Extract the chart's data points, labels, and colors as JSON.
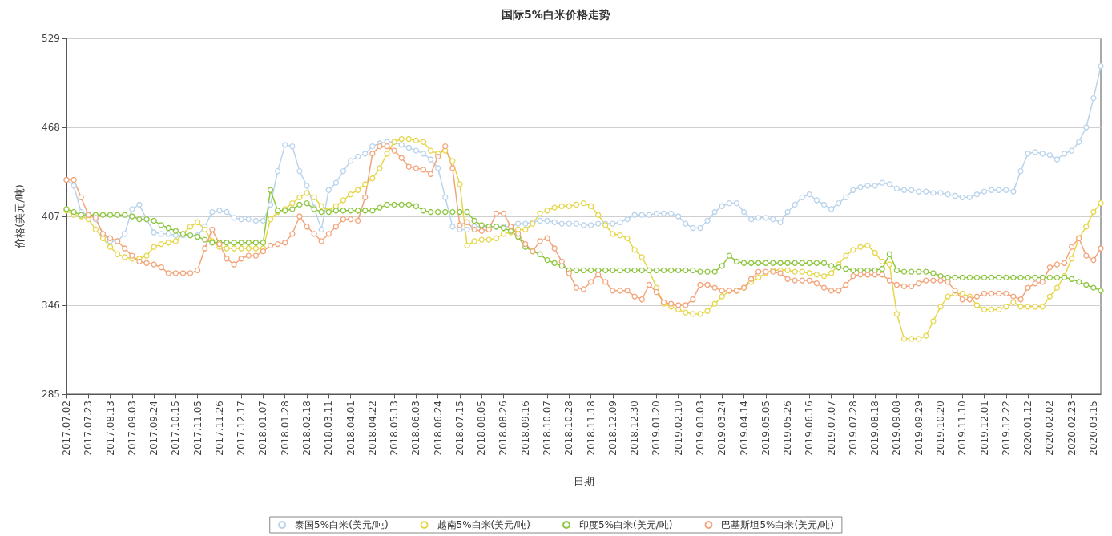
{
  "chart_data": {
    "type": "line",
    "title": "国际5%白米价格走势",
    "xlabel": "日期",
    "ylabel": "价格(美元/吨)",
    "categories": [
      "2017.07.02",
      null,
      null,
      "2017.07.23",
      null,
      null,
      "2017.08.13",
      null,
      null,
      "2017.09.03",
      null,
      null,
      "2017.09.24",
      null,
      null,
      "2017.10.15",
      null,
      null,
      "2017.11.05",
      null,
      null,
      "2017.11.26",
      null,
      null,
      "2017.12.17",
      null,
      null,
      "2018.01.07",
      null,
      null,
      "2018.01.28",
      null,
      null,
      "2018.02.18",
      null,
      null,
      "2018.03.11",
      null,
      null,
      "2018.04.01",
      null,
      null,
      "2018.04.22",
      null,
      null,
      "2018.05.13",
      null,
      null,
      "2018.06.03",
      null,
      null,
      "2018.06.24",
      null,
      null,
      "2018.07.15",
      null,
      null,
      "2018.08.05",
      null,
      null,
      "2018.08.26",
      null,
      null,
      "2018.09.16",
      null,
      null,
      "2018.10.07",
      null,
      null,
      "2018.10.28",
      null,
      null,
      "2018.11.18",
      null,
      null,
      "2018.12.09",
      null,
      null,
      "2018.12.30",
      null,
      null,
      "2019.01.20",
      null,
      null,
      "2019.02.10",
      null,
      null,
      "2019.03.03",
      null,
      null,
      "2019.03.24",
      null,
      null,
      "2019.04.14",
      null,
      null,
      "2019.05.05",
      null,
      null,
      "2019.05.26",
      null,
      null,
      "2019.06.16",
      null,
      null,
      "2019.07.07",
      null,
      null,
      "2019.07.28",
      null,
      null,
      "2019.08.18",
      null,
      null,
      "2019.09.08",
      null,
      null,
      "2019.09.29",
      null,
      null,
      "2019.10.20",
      null,
      null,
      "2019.11.10",
      null,
      null,
      "2019.12.01",
      null,
      null,
      "2019.12.22",
      null,
      null,
      "2020.01.12",
      null,
      null,
      "2020.02.02",
      null,
      null,
      "2020.02.23",
      null,
      null,
      "2020.03.15",
      null
    ],
    "series": [
      {
        "name": "泰国5%白米(美元/吨)",
        "color": "#b9d3ec",
        "values": [
          432,
          428,
          410,
          408,
          405,
          395,
          390,
          390,
          395,
          412,
          415,
          405,
          396,
          395,
          395,
          394,
          394,
          394,
          394,
          400,
          410,
          411,
          410,
          406,
          405,
          405,
          404,
          404,
          415,
          438,
          456,
          455,
          438,
          428,
          413,
          398,
          425,
          430,
          438,
          445,
          448,
          450,
          455,
          457,
          458,
          458,
          456,
          454,
          452,
          450,
          446,
          440,
          420,
          400,
          398,
          398,
          400,
          400,
          400,
          400,
          400,
          400,
          402,
          402,
          403,
          404,
          404,
          403,
          402,
          402,
          402,
          401,
          401,
          402,
          402,
          402,
          403,
          405,
          408,
          408,
          408,
          409,
          409,
          409,
          407,
          402,
          399,
          399,
          404,
          410,
          414,
          416,
          416,
          410,
          405,
          406,
          406,
          405,
          403,
          410,
          415,
          420,
          422,
          418,
          415,
          412,
          416,
          420,
          425,
          427,
          428,
          428,
          430,
          429,
          426,
          425,
          425,
          424,
          424,
          423,
          423,
          422,
          421,
          420,
          420,
          422,
          424,
          425,
          425,
          425,
          424,
          438,
          450,
          451,
          450,
          449,
          446,
          450,
          452,
          458,
          468,
          488,
          510
        ]
      },
      {
        "name": "越南5%白米(美元/吨)",
        "color": "#e6d64a",
        "values": [
          411,
          408,
          407,
          405,
          398,
          392,
          386,
          381,
          379,
          378,
          378,
          380,
          386,
          388,
          389,
          390,
          395,
          400,
          403,
          398,
          390,
          386,
          385,
          385,
          385,
          385,
          385,
          385,
          405,
          410,
          412,
          416,
          420,
          423,
          420,
          414,
          411,
          414,
          418,
          422,
          425,
          429,
          433,
          440,
          450,
          458,
          460,
          460,
          459,
          458,
          452,
          450,
          452,
          445,
          429,
          387,
          390,
          391,
          391,
          392,
          395,
          396,
          398,
          398,
          402,
          409,
          411,
          413,
          414,
          414,
          415,
          416,
          414,
          408,
          401,
          395,
          394,
          392,
          384,
          379,
          370,
          358,
          347,
          345,
          343,
          341,
          340,
          340,
          342,
          347,
          352,
          356,
          356,
          358,
          362,
          365,
          368,
          370,
          370,
          370,
          369,
          369,
          368,
          367,
          366,
          368,
          374,
          380,
          384,
          386,
          387,
          382,
          376,
          374,
          340,
          323,
          323,
          323,
          325,
          335,
          345,
          352,
          354,
          354,
          352,
          346,
          343,
          343,
          343,
          345,
          348,
          345,
          345,
          345,
          345,
          352,
          358,
          366,
          378,
          392,
          400,
          410,
          416
        ]
      },
      {
        "name": "印度5%白米(美元/吨)",
        "color": "#8dc63f",
        "values": [
          412,
          410,
          408,
          408,
          408,
          408,
          408,
          408,
          408,
          407,
          405,
          405,
          404,
          401,
          399,
          397,
          395,
          394,
          393,
          391,
          389,
          389,
          389,
          389,
          389,
          389,
          389,
          389,
          425,
          411,
          411,
          412,
          415,
          416,
          412,
          410,
          410,
          411,
          411,
          411,
          411,
          411,
          411,
          413,
          415,
          415,
          415,
          415,
          414,
          411,
          410,
          410,
          410,
          410,
          410,
          410,
          404,
          401,
          400,
          400,
          399,
          397,
          393,
          386,
          383,
          381,
          377,
          375,
          373,
          370,
          370,
          370,
          370,
          370,
          370,
          370,
          370,
          370,
          370,
          370,
          370,
          370,
          370,
          370,
          370,
          370,
          370,
          369,
          369,
          369,
          373,
          380,
          376,
          375,
          375,
          375,
          375,
          375,
          375,
          375,
          375,
          375,
          375,
          375,
          375,
          373,
          372,
          371,
          370,
          370,
          370,
          370,
          371,
          381,
          370,
          369,
          369,
          369,
          369,
          368,
          366,
          365,
          365,
          365,
          365,
          365,
          365,
          365,
          365,
          365,
          365,
          365,
          365,
          365,
          365,
          365,
          365,
          365,
          364,
          362,
          360,
          358,
          356
        ]
      },
      {
        "name": "巴基斯坦5%白米(美元/吨)",
        "color": "#f3a47a",
        "values": [
          432,
          432,
          420,
          408,
          406,
          395,
          392,
          390,
          385,
          380,
          376,
          375,
          374,
          372,
          368,
          368,
          368,
          368,
          370,
          385,
          398,
          388,
          378,
          374,
          378,
          380,
          380,
          383,
          387,
          388,
          389,
          395,
          407,
          400,
          395,
          390,
          395,
          400,
          405,
          405,
          404,
          420,
          450,
          455,
          455,
          452,
          447,
          441,
          440,
          439,
          436,
          448,
          455,
          440,
          401,
          403,
          398,
          397,
          398,
          409,
          409,
          400,
          395,
          388,
          383,
          390,
          392,
          385,
          376,
          368,
          358,
          357,
          362,
          367,
          362,
          356,
          356,
          356,
          352,
          350,
          360,
          355,
          348,
          347,
          346,
          346,
          350,
          360,
          360,
          358,
          356,
          356,
          356,
          358,
          364,
          369,
          369,
          369,
          368,
          364,
          363,
          363,
          363,
          361,
          358,
          356,
          356,
          360,
          366,
          367,
          367,
          367,
          367,
          363,
          360,
          359,
          359,
          361,
          363,
          363,
          363,
          362,
          356,
          350,
          350,
          352,
          354,
          354,
          354,
          354,
          352,
          350,
          358,
          361,
          362,
          372,
          374,
          375,
          386,
          392,
          380,
          377,
          385
        ]
      }
    ],
    "ylim": [
      285,
      529
    ],
    "yticks": [
      285,
      346,
      407,
      468,
      529
    ],
    "grid": "y",
    "legend": "bottom",
    "marker": "circle",
    "line_style": "solid"
  }
}
